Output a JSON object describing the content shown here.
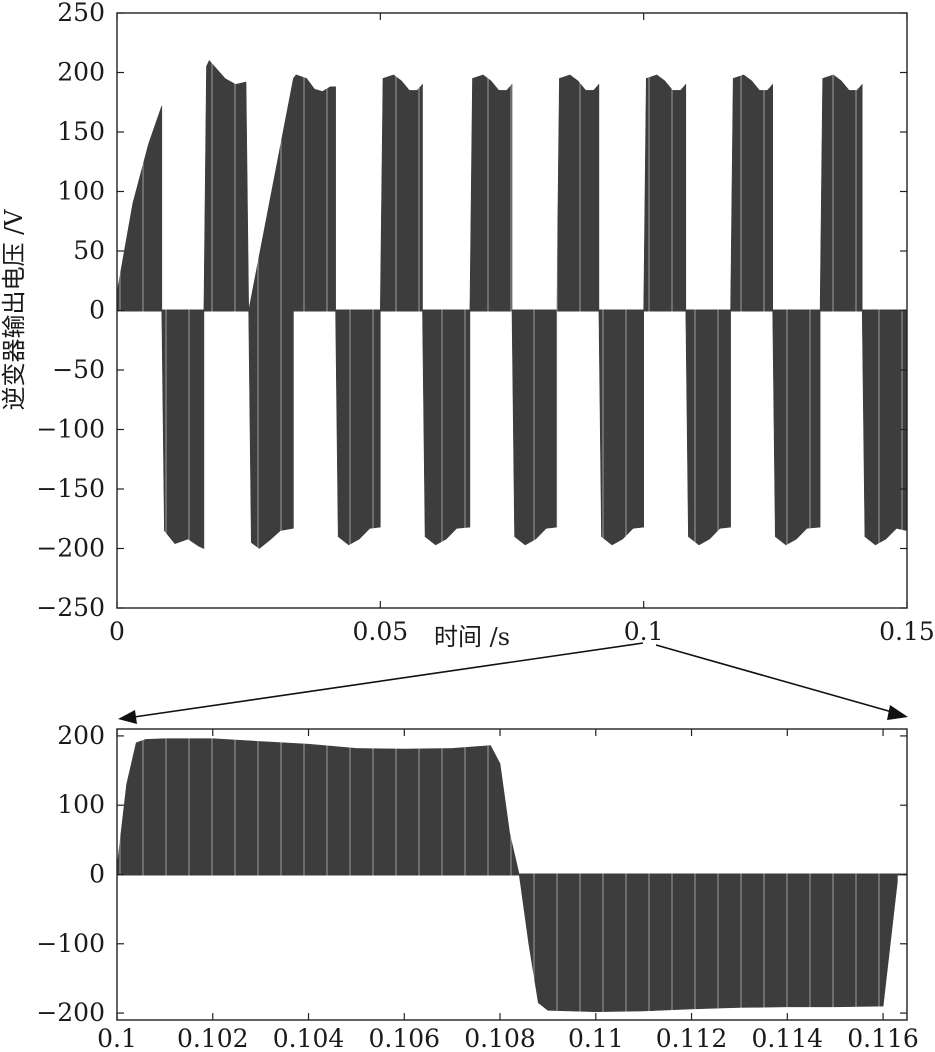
{
  "chart_data": [
    {
      "type": "line",
      "description_of_marks": "PWM inverter output voltage (dense switching pulses)",
      "xlabel": "时间 /s",
      "ylabel": "逆变器输出电压 /V",
      "xlim": [
        0,
        0.15
      ],
      "ylim": [
        -250,
        250
      ],
      "xticks": [
        0,
        0.05,
        0.1,
        0.15
      ],
      "xtick_labels": [
        "0",
        "0.05",
        "0.1",
        "0.15"
      ],
      "yticks": [
        250,
        200,
        150,
        100,
        50,
        0,
        -50,
        -100,
        -150,
        -200,
        -250
      ],
      "ytick_labels": [
        "250",
        "200",
        "150",
        "100",
        "50",
        "0",
        "−50",
        "−100",
        "−150",
        "−200",
        "−250"
      ],
      "envelope": {
        "x": [
          0,
          0.003,
          0.006,
          0.0085,
          0.0085,
          0.0165,
          0.017,
          0.0175,
          0.0185,
          0.0205,
          0.0225,
          0.0245,
          0.025,
          0.025,
          0.0335,
          0.034,
          0.036,
          0.0375,
          0.039,
          0.0405,
          0.0415,
          0.0415,
          0.05,
          0.0505,
          0.0525,
          0.054,
          0.0555,
          0.057,
          0.058,
          0.058,
          0.067,
          0.0675,
          0.0695,
          0.071,
          0.0725,
          0.074,
          0.075,
          0.075,
          0.0835,
          0.084,
          0.086,
          0.0875,
          0.089,
          0.0905,
          0.0915,
          0.0915,
          0.1,
          0.1005,
          0.1025,
          0.104,
          0.1055,
          0.107,
          0.108,
          0.108,
          0.1165,
          0.117,
          0.119,
          0.1205,
          0.122,
          0.1235,
          0.1245,
          0.1245,
          0.1335,
          0.134,
          0.136,
          0.1375,
          0.139,
          0.1405,
          0.1415,
          0.1415,
          0.15
        ],
        "y": [
          15,
          90,
          140,
          172,
          0,
          0,
          205,
          210,
          205,
          195,
          190,
          192,
          0,
          0,
          195,
          198,
          195,
          186,
          184,
          188,
          188,
          0,
          0,
          195,
          198,
          193,
          185,
          185,
          190,
          0,
          0,
          195,
          198,
          193,
          185,
          185,
          190,
          0,
          0,
          195,
          198,
          193,
          185,
          185,
          190,
          0,
          0,
          195,
          198,
          193,
          185,
          185,
          190,
          0,
          0,
          195,
          198,
          193,
          185,
          185,
          190,
          0,
          0,
          195,
          198,
          193,
          185,
          185,
          190,
          0,
          0
        ],
        "neg_x": [
          0.0085,
          0.009,
          0.011,
          0.0135,
          0.0155,
          0.0165,
          0.0165,
          0.025,
          0.0255,
          0.027,
          0.029,
          0.031,
          0.0335,
          0.0335,
          0.0415,
          0.042,
          0.044,
          0.046,
          0.048,
          0.05,
          0.05,
          0.058,
          0.0585,
          0.0605,
          0.0625,
          0.0645,
          0.067,
          0.067,
          0.075,
          0.0755,
          0.0775,
          0.0795,
          0.0815,
          0.0835,
          0.0835,
          0.0915,
          0.092,
          0.094,
          0.096,
          0.098,
          0.1,
          0.1,
          0.108,
          0.1085,
          0.1105,
          0.1125,
          0.1145,
          0.1165,
          0.1165,
          0.1245,
          0.125,
          0.127,
          0.129,
          0.131,
          0.1335,
          0.1335,
          0.1415,
          0.142,
          0.144,
          0.146,
          0.148,
          0.15
        ],
        "neg_y": [
          0,
          -185,
          -196,
          -192,
          -198,
          -200,
          0,
          0,
          -195,
          -200,
          -193,
          -185,
          -183,
          0,
          0,
          -190,
          -197,
          -192,
          -183,
          -182,
          0,
          0,
          -190,
          -197,
          -192,
          -183,
          -182,
          0,
          0,
          -190,
          -197,
          -192,
          -183,
          -182,
          0,
          0,
          -190,
          -197,
          -192,
          -183,
          -182,
          0,
          0,
          -190,
          -197,
          -192,
          -183,
          -182,
          0,
          0,
          -190,
          -197,
          -192,
          -183,
          -182,
          0,
          0,
          -190,
          -197,
          -192,
          -183,
          -185
        ]
      }
    },
    {
      "type": "line",
      "description_of_marks": "zoomed PWM inverter output voltage around 0.1 s",
      "xlim": [
        0.1,
        0.1165
      ],
      "ylim": [
        -210,
        210
      ],
      "xticks": [
        0.1,
        0.102,
        0.104,
        0.106,
        0.108,
        0.11,
        0.112,
        0.114,
        0.116
      ],
      "xtick_labels": [
        "0.1",
        "0.102",
        "0.104",
        "0.106",
        "0.108",
        "0.11",
        "0.112",
        "0.114",
        "0.116"
      ],
      "yticks": [
        200,
        100,
        0,
        -100,
        -200
      ],
      "ytick_labels": [
        "200",
        "100",
        "0",
        "−100",
        "−200"
      ],
      "envelope": {
        "x": [
          0.1,
          0.1002,
          0.1004,
          0.1006,
          0.101,
          0.102,
          0.103,
          0.104,
          0.105,
          0.106,
          0.107,
          0.1078,
          0.108,
          0.1082,
          0.1084,
          0.1086,
          0.1088,
          0.109,
          0.11,
          0.111,
          0.112,
          0.113,
          0.114,
          0.115,
          0.116,
          0.1163
        ],
        "y": [
          10,
          130,
          190,
          195,
          196,
          196,
          192,
          188,
          182,
          181,
          182,
          186,
          160,
          60,
          0,
          -100,
          -185,
          -196,
          -198,
          -197,
          -194,
          -192,
          -191,
          -191,
          -190,
          -10
        ]
      }
    }
  ]
}
